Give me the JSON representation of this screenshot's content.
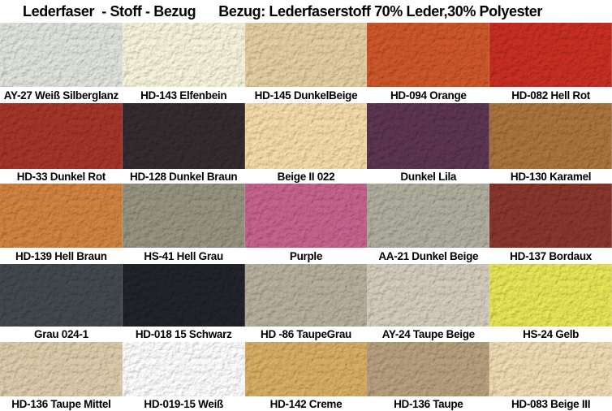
{
  "title": {
    "left": "Lederfaser  - Stoff - Bezug",
    "right": "Bezug: Lederfaserstoff 70% Leder,30% Polyester"
  },
  "grid": {
    "columns": 5,
    "rows": [
      {
        "cells": [
          {
            "label": "AY-27 Weiß Silberglanz",
            "color": "#dbded7"
          },
          {
            "label": "HD-143 Elfenbein",
            "color": "#f1eed6"
          },
          {
            "label": "HD-145 DunkelBeige",
            "color": "#dfca9e"
          },
          {
            "label": "HD-094 Orange",
            "color": "#c95529"
          },
          {
            "label": "HD-082 Hell Rot",
            "color": "#c32e21"
          }
        ]
      },
      {
        "cells": [
          {
            "label": "HD-33 Dunkel Rot",
            "color": "#a23329"
          },
          {
            "label": "HD-128 Dunkel Braun",
            "color": "#332b2f"
          },
          {
            "label": "Beige II 022",
            "color": "#eed7a6"
          },
          {
            "label": "Dunkel Lila",
            "color": "#5a3350"
          },
          {
            "label": "HD-130 Karamel",
            "color": "#a6713b"
          }
        ]
      },
      {
        "cells": [
          {
            "label": "HD-139 Hell Braun",
            "color": "#cd8040"
          },
          {
            "label": "HS-41 Hell Grau",
            "color": "#93907d"
          },
          {
            "label": "Purple",
            "color": "#c2618b"
          },
          {
            "label": "AA-21 Dunkel Beige",
            "color": "#abaa9b"
          },
          {
            "label": "HD-137 Bordaux",
            "color": "#86352c"
          }
        ]
      },
      {
        "cells": [
          {
            "label": "Grau 024-1",
            "color": "#42474b"
          },
          {
            "label": "HD-018 15 Schwarz",
            "color": "#202329"
          },
          {
            "label": "HD -86 TaupeGrau",
            "color": "#b2ab98"
          },
          {
            "label": "AY-24 Taupe Beige",
            "color": "#cfc7b8"
          },
          {
            "label": "HS-24 Gelb",
            "color": "#e2df55"
          }
        ]
      },
      {
        "cells": [
          {
            "label": "HD-136 Taupe Mittel",
            "color": "#d7c7a7"
          },
          {
            "label": "HD-019-15 Weiß",
            "color": "#f7f7f7"
          },
          {
            "label": "HD-142 Creme",
            "color": "#d3aa62"
          },
          {
            "label": "HD-136 Taupe",
            "color": "#b39c7c"
          },
          {
            "label": "HD-083 Beige III",
            "color": "#e9d6ae"
          }
        ]
      }
    ]
  }
}
